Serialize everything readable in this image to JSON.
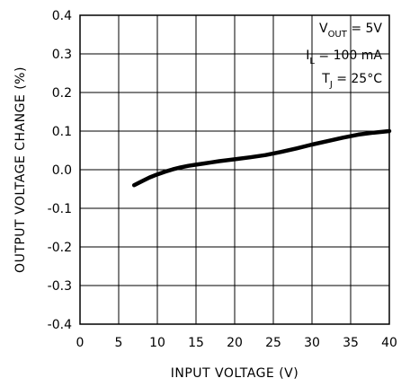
{
  "chart_data": {
    "type": "line",
    "xlabel": "INPUT VOLTAGE (V)",
    "ylabel": "OUTPUT VOLTAGE CHANGE (%)",
    "xlim": [
      0,
      40
    ],
    "ylim": [
      -0.4,
      0.4
    ],
    "x_ticks": [
      "0",
      "5",
      "10",
      "15",
      "20",
      "25",
      "30",
      "35",
      "40"
    ],
    "y_ticks": [
      "0.4",
      "0.3",
      "0.2",
      "0.1",
      "0.0",
      "-0.1",
      "-0.2",
      "-0.3",
      "-0.4"
    ],
    "grid": true,
    "series": [
      {
        "x": [
          7,
          8,
          9,
          10,
          11,
          12,
          13,
          14,
          15,
          16,
          17,
          18,
          20,
          22,
          24,
          26,
          28,
          30,
          32,
          34,
          36,
          38,
          40
        ],
        "y": [
          -0.04,
          -0.03,
          -0.02,
          -0.012,
          -0.005,
          0.001,
          0.006,
          0.01,
          0.013,
          0.016,
          0.019,
          0.022,
          0.027,
          0.032,
          0.038,
          0.046,
          0.055,
          0.065,
          0.074,
          0.083,
          0.091,
          0.096,
          0.1
        ]
      }
    ],
    "annotations": [
      {
        "main": "V",
        "sub": "OUT",
        "rest": " = 5V"
      },
      {
        "main": "I",
        "sub": "L",
        "rest": " = 100 mA"
      },
      {
        "main": "T",
        "sub": "J",
        "rest": " = 25°C"
      }
    ]
  }
}
